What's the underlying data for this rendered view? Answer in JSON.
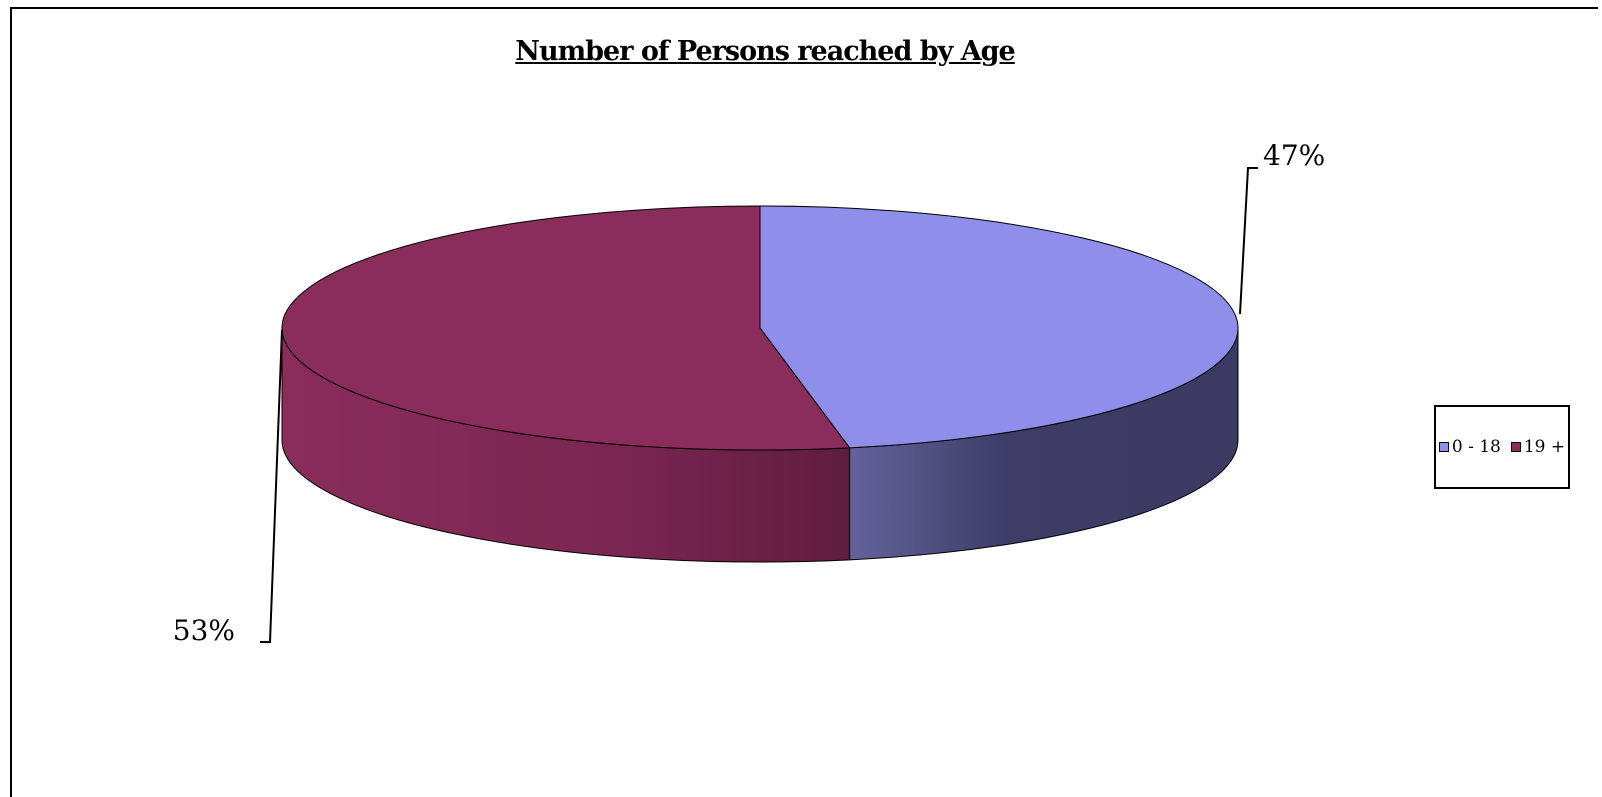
{
  "chart_data": {
    "type": "pie",
    "title": "Number of Persons reached by Age",
    "slices": [
      {
        "label": "0 - 18",
        "value": 47,
        "display": "47%",
        "color": "#8E8EEB",
        "side_color": "#3C3C66"
      },
      {
        "label": "19 +",
        "value": 53,
        "display": "53%",
        "color": "#8B2D5A",
        "side_color": "#5E1E3D"
      }
    ],
    "legend_position": "right",
    "three_d": true
  }
}
